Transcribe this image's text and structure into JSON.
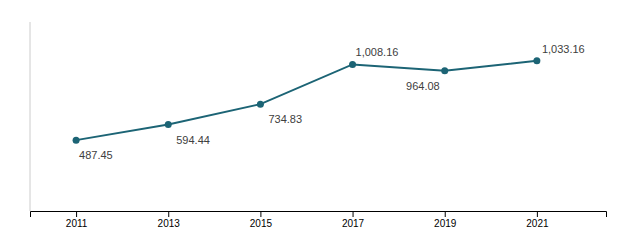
{
  "chart_data": {
    "type": "line",
    "x": [
      2011,
      2013,
      2015,
      2017,
      2019,
      2021
    ],
    "values": [
      487.45,
      594.44,
      734.83,
      1008.16,
      964.08,
      1033.16
    ],
    "value_labels": [
      "487.45",
      "594.44",
      "734.83",
      "1,008.16",
      "964.08",
      "1,033.16"
    ],
    "data_labels": true,
    "color": "#1c6475",
    "marker": "circle",
    "xlim": [
      2010.0,
      2022.5
    ],
    "xticks": [
      2011,
      2013,
      2015,
      2017,
      2019,
      2021
    ],
    "ylim": [
      0,
      1300
    ],
    "tick_labels": "x"
  }
}
